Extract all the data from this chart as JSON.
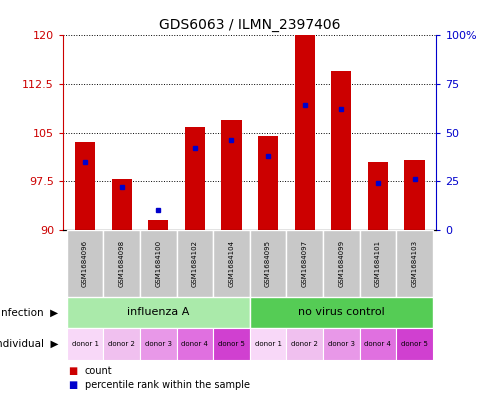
{
  "title": "GDS6063 / ILMN_2397406",
  "samples": [
    "GSM1684096",
    "GSM1684098",
    "GSM1684100",
    "GSM1684102",
    "GSM1684104",
    "GSM1684095",
    "GSM1684097",
    "GSM1684099",
    "GSM1684101",
    "GSM1684103"
  ],
  "count_values": [
    103.5,
    97.8,
    91.5,
    105.8,
    107.0,
    104.5,
    120.0,
    114.5,
    100.5,
    100.8
  ],
  "percentile_values": [
    35,
    22,
    10,
    42,
    46,
    38,
    64,
    62,
    24,
    26
  ],
  "y_min": 90,
  "y_max": 120,
  "y_ticks": [
    90,
    97.5,
    105,
    112.5,
    120
  ],
  "y_tick_labels": [
    "90",
    "97.5",
    "105",
    "112.5",
    "120"
  ],
  "y2_ticks": [
    0,
    25,
    50,
    75,
    100
  ],
  "y2_tick_labels": [
    "0",
    "25",
    "50",
    "75",
    "100%"
  ],
  "infection_groups": [
    {
      "label": "influenza A",
      "start": 0,
      "end": 5,
      "color": "#aaeaaa"
    },
    {
      "label": "no virus control",
      "start": 5,
      "end": 10,
      "color": "#55cc55"
    }
  ],
  "individual_labels": [
    "donor 1",
    "donor 2",
    "donor 3",
    "donor 4",
    "donor 5",
    "donor 1",
    "donor 2",
    "donor 3",
    "donor 4",
    "donor 5"
  ],
  "individual_colors": [
    "#f8d8f8",
    "#f0c0ef",
    "#e898e8",
    "#e070e0",
    "#d040d0",
    "#f8d8f8",
    "#f0c0ef",
    "#e898e8",
    "#e070e0",
    "#d040d0"
  ],
  "sample_box_color": "#c8c8c8",
  "bar_color": "#cc0000",
  "dot_color": "#0000cc",
  "bar_width": 0.55,
  "count_label": "count",
  "percentile_label": "percentile rank within the sample",
  "tick_label_color_left": "#cc0000",
  "tick_label_color_right": "#0000cc"
}
